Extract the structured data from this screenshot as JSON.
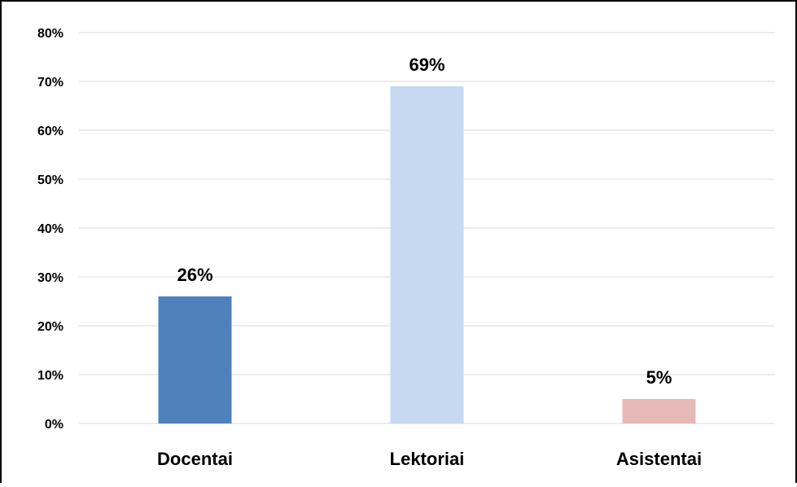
{
  "chart_data": {
    "type": "bar",
    "title": "",
    "xlabel": "",
    "ylabel": "",
    "categories": [
      "Docentai",
      "Lektoriai",
      "Asistentai"
    ],
    "values": [
      26,
      69,
      5
    ],
    "data_labels": [
      "26%",
      "69%",
      "5%"
    ],
    "bar_colors": [
      "#4f81bd",
      "#c6d9f1",
      "#e6b9b8"
    ],
    "ylim": [
      0,
      80
    ],
    "yticks": [
      0,
      10,
      20,
      30,
      40,
      50,
      60,
      70,
      80
    ],
    "ytick_labels": [
      "0%",
      "10%",
      "20%",
      "30%",
      "40%",
      "50%",
      "60%",
      "70%",
      "80%"
    ],
    "grid": true,
    "gridline_color": "#d9d9d9",
    "legend": "none"
  }
}
